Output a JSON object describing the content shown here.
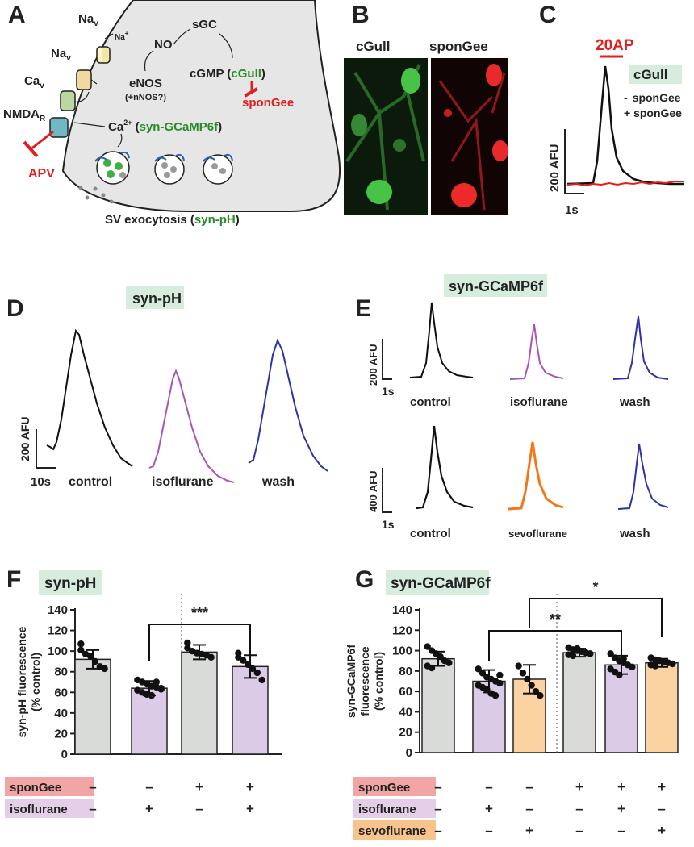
{
  "colors": {
    "green": "#2a8a2a",
    "red": "#e02020",
    "purple": "#a855b8",
    "navy": "#2b35a6",
    "orange": "#f07a1a",
    "labelbg": "#d6ecdd",
    "gray_bar": "#d9dbd9",
    "purple_bar": "#dccbe6",
    "orange_bar": "#fbd3a2",
    "row_spongee": "#f2a5a5",
    "row_iso": "#e5cfe8",
    "row_sevo": "#f7c48e"
  },
  "panelA": {
    "label": "A",
    "nav1_main": "Na",
    "nav1_sub": "v",
    "na_plus": "Na",
    "nav2_main": "Na",
    "nav2_sub": "v",
    "cav_main": "Ca",
    "cav_sub": "v",
    "nmda_main": "NMDA",
    "nmda_sub": "R",
    "apv": "APV",
    "no": "NO",
    "sgc": "sGC",
    "enos": "eNOS",
    "nnos": "(+nNOS?)",
    "cgmp": "cGMP (",
    "cgull": "cGull",
    "cgmp_close": ")",
    "spongee": "sponGee",
    "ca": "Ca",
    "ca_sup": "2+",
    "ca_open": " (",
    "gcamp": "syn-GCaMP6f",
    "ca_close": ")",
    "sv": "SV exocytosis (",
    "synph": "syn-pH",
    "sv_close": ")"
  },
  "panelB": {
    "label": "B",
    "left_title": "cGull",
    "right_title": "sponGee"
  },
  "panelC": {
    "label": "C",
    "stim": "20AP",
    "title": "cGull",
    "minus": "-",
    "minus_text": "sponGee",
    "plus": "+ sponGee",
    "scale_y": "200 AFU",
    "scale_x": "1s"
  },
  "panelD": {
    "label": "D",
    "title": "syn-pH",
    "scale_y": "200 AFU",
    "scale_x": "10s",
    "traces": [
      "control",
      "isoflurane",
      "wash"
    ]
  },
  "panelE": {
    "label": "E",
    "title": "syn-GCaMP6f",
    "row1": {
      "scale_y": "200 AFU",
      "scale_x": "1s",
      "traces": [
        "control",
        "isoflurane",
        "wash"
      ]
    },
    "row2": {
      "scale_y": "400 AFU",
      "scale_x": "1s",
      "traces": [
        "control",
        "sevoflurane",
        "wash"
      ]
    }
  },
  "chart_data": [
    {
      "type": "bar",
      "panel": "F",
      "title": "syn-pH",
      "ylabel": "syn-pH fluorescence (% control)",
      "ylabel_lines": [
        "syn-pH fluorescence",
        "(% control)"
      ],
      "ylim": [
        0,
        140
      ],
      "yticks": [
        "0",
        "20",
        "40",
        "60",
        "80",
        "100",
        "120",
        "140"
      ],
      "values": [
        92,
        64,
        99,
        85
      ],
      "errors": [
        9,
        7,
        7,
        11
      ],
      "points": [
        [
          101,
          97,
          95,
          90,
          85,
          83,
          107
        ],
        [
          72,
          70,
          68,
          66,
          65,
          63,
          62,
          60,
          58,
          57,
          70,
          64
        ],
        [
          103,
          100,
          98,
          97,
          96,
          94,
          108
        ],
        [
          94,
          91,
          87,
          83,
          79,
          72,
          98
        ]
      ],
      "conditions": [
        {
          "label": "sponGee",
          "values": [
            "–",
            "–",
            "+",
            "+"
          ]
        },
        {
          "label": "isoflurane",
          "values": [
            "–",
            "+",
            "–",
            "+"
          ]
        }
      ],
      "significance": [
        {
          "from": 1,
          "to": 3,
          "label": "***"
        }
      ]
    },
    {
      "type": "bar",
      "panel": "G",
      "title": "syn-GCaMP6f",
      "ylabel": "syn-GCaMP6f fluorescence (% control)",
      "ylabel_lines": [
        "syn-GCaMP6f",
        "fluorescence",
        "(% control)"
      ],
      "ylim": [
        0,
        140
      ],
      "yticks": [
        "0",
        "20",
        "40",
        "60",
        "80",
        "100",
        "120",
        "140"
      ],
      "values": [
        92,
        70,
        72,
        98,
        86,
        88
      ],
      "errors": [
        7,
        11,
        14,
        4,
        9,
        4
      ],
      "points": [
        [
          104,
          100,
          97,
          94,
          90,
          88,
          85,
          83
        ],
        [
          82,
          78,
          74,
          72,
          70,
          68,
          66,
          64,
          62,
          58,
          56,
          76
        ],
        [
          85,
          78,
          72,
          66,
          60,
          56
        ],
        [
          103,
          101,
          100,
          99,
          98,
          97,
          96,
          95,
          102
        ],
        [
          97,
          93,
          90,
          88,
          86,
          84,
          82,
          79,
          76,
          92
        ],
        [
          93,
          91,
          90,
          89,
          88,
          87,
          86,
          85
        ]
      ],
      "conditions": [
        {
          "label": "sponGee",
          "values": [
            "–",
            "–",
            "–",
            "+",
            "+",
            "+"
          ]
        },
        {
          "label": "isoflurane",
          "values": [
            "–",
            "+",
            "–",
            "–",
            "+",
            "–"
          ]
        },
        {
          "label": "sevoflurane",
          "values": [
            "–",
            "–",
            "+",
            "–",
            "–",
            "+"
          ]
        }
      ],
      "significance": [
        {
          "from": 1,
          "to": 4,
          "label": "**"
        },
        {
          "from": 2,
          "to": 5,
          "label": "*"
        }
      ]
    }
  ]
}
